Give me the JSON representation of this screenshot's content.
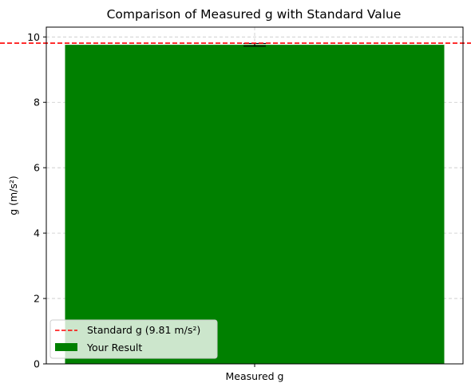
{
  "chart_data": {
    "type": "bar",
    "title": "Comparison of Measured g with Standard Value",
    "xlabel": "",
    "ylabel": "g (m/s²)",
    "categories": [
      "Measured g"
    ],
    "series": [
      {
        "name": "Your Result",
        "values": [
          9.76
        ],
        "error": [
          0.04
        ],
        "color": "#008000"
      }
    ],
    "reference_line": {
      "name": "Standard g (9.81 m/s²)",
      "value": 9.81,
      "color": "#ff0000",
      "style": "dashed"
    },
    "ylim": [
      0,
      10.3
    ],
    "yticks": [
      0,
      2,
      4,
      6,
      8,
      10
    ],
    "grid": true,
    "legend_position": "lower-left"
  }
}
